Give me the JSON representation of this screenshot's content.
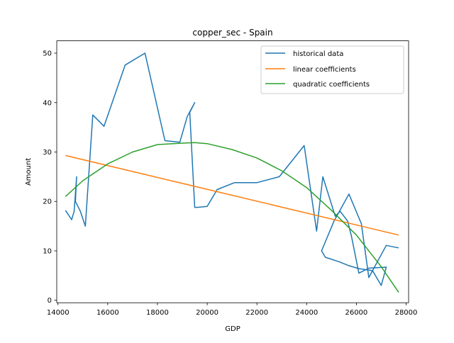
{
  "chart_data": {
    "type": "line",
    "title": "copper_sec - Spain",
    "xlabel": "GDP",
    "ylabel": "Amount",
    "xlim": [
      13950,
      28100
    ],
    "ylim": [
      -0.5,
      52.5
    ],
    "x_ticks": [
      14000,
      16000,
      18000,
      20000,
      22000,
      24000,
      26000,
      28000
    ],
    "y_ticks": [
      0,
      10,
      20,
      30,
      40,
      50
    ],
    "grid": false,
    "legend_position": "upper right",
    "series": [
      {
        "name": "historical data",
        "color": "#1f77b4",
        "x": [
          14300,
          14550,
          14650,
          14750,
          14700,
          14900,
          15100,
          15400,
          15850,
          16700,
          17500,
          18300,
          18900,
          19200,
          19500,
          19300,
          19500,
          19600,
          20000,
          20400,
          21100,
          22000,
          22900,
          23900,
          24400,
          24650,
          25150,
          25350,
          25650,
          25800,
          26100,
          26500,
          27200,
          27000,
          26650,
          26100,
          25700,
          25300,
          24750,
          24600,
          25100,
          25700,
          26200,
          26500,
          27200,
          27700
        ],
        "y": [
          18.2,
          16.3,
          18.0,
          25.0,
          20.0,
          18.0,
          15.0,
          37.5,
          35.2,
          47.6,
          50.0,
          32.3,
          32.0,
          37.2,
          40.0,
          38.0,
          18.8,
          18.8,
          19.0,
          22.4,
          23.8,
          23.8,
          25.0,
          31.3,
          14.0,
          25.0,
          17.0,
          18.0,
          16.0,
          13.0,
          5.5,
          6.5,
          6.7,
          3.0,
          6.0,
          6.4,
          7.0,
          7.8,
          8.7,
          10.0,
          16.0,
          21.5,
          15.5,
          4.6,
          11.1,
          10.6
        ]
      },
      {
        "name": "linear coefficients",
        "color": "#ff7f0e",
        "x": [
          14300,
          27700
        ],
        "y": [
          29.3,
          13.2
        ]
      },
      {
        "name": "quadratic coefficients",
        "color": "#2ca02c",
        "x": [
          14300,
          15000,
          16000,
          17000,
          18000,
          19000,
          19500,
          20000,
          21000,
          22000,
          23000,
          24000,
          25000,
          26000,
          27000,
          27700
        ],
        "y": [
          21.0,
          24.2,
          27.6,
          30.0,
          31.5,
          31.8,
          31.9,
          31.7,
          30.5,
          28.8,
          26.2,
          22.8,
          18.2,
          13.2,
          6.8,
          1.6
        ]
      }
    ]
  }
}
